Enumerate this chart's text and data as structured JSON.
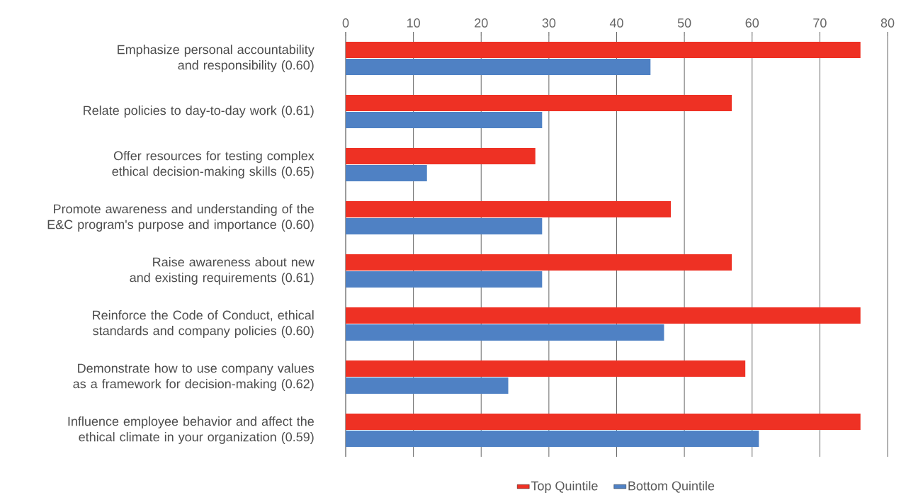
{
  "chart_data": {
    "type": "bar",
    "orientation": "horizontal",
    "categories": [
      "Emphasize personal accountability and responsibility (0.60)",
      "Relate policies to day-to-day work (0.61)",
      "Offer resources for testing complex ethical decision-making skills (0.65)",
      "Promote awareness and understanding of the E&C program's purpose and importance (0.60)",
      "Raise awareness about new and existing requirements (0.61)",
      "Reinforce the Code of Conduct, ethical standards and company policies (0.60)",
      "Demonstrate how to use company values as a framework for decision-making (0.62)",
      "Influence employee behavior and affect the ethical climate in your organization (0.59)"
    ],
    "series": [
      {
        "name": "Top Quintile",
        "color": "#ee3124",
        "values": [
          76,
          57,
          28,
          48,
          57,
          76,
          59,
          76
        ]
      },
      {
        "name": "Bottom Quintile",
        "color": "#4f81c4",
        "values": [
          45,
          29,
          12,
          29,
          29,
          47,
          24,
          61
        ]
      }
    ],
    "xlim": [
      0,
      80
    ],
    "xticks": [
      0,
      10,
      20,
      30,
      40,
      50,
      60,
      70,
      80
    ],
    "grid": "x",
    "legend": "bottom"
  }
}
